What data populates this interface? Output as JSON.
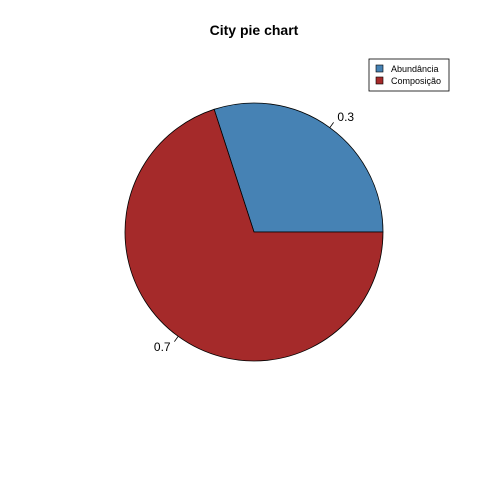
{
  "chart_data": {
    "type": "pie",
    "title": "City pie chart",
    "slices": [
      {
        "label": "0.3",
        "legend": "Abundância",
        "value": 0.3,
        "color": "#4682b4"
      },
      {
        "label": "0.7",
        "legend": "Composição",
        "value": 0.7,
        "color": "#a52a2a"
      }
    ],
    "start_angle_deg": 0,
    "direction": "counterclockwise",
    "legend_position": "top-right"
  }
}
